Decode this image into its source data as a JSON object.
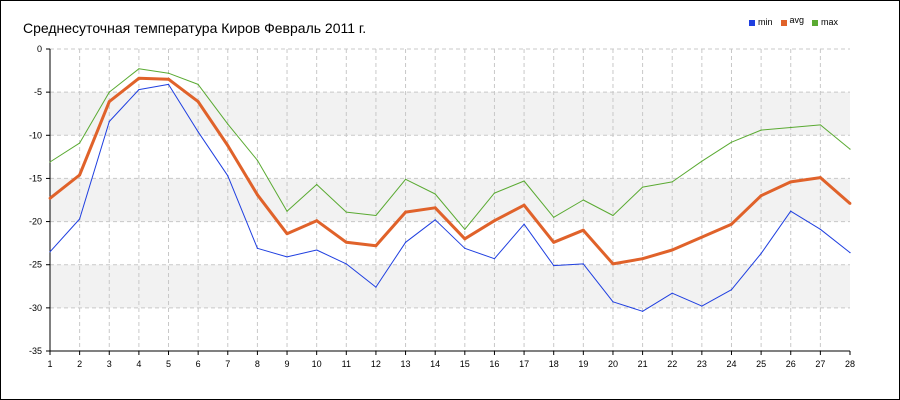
{
  "chart_data": {
    "type": "line",
    "title": "Среднесуточная температура Киров  Февраль 2011 г.",
    "xlabel": "",
    "ylabel": "",
    "x": [
      1,
      2,
      3,
      4,
      5,
      6,
      7,
      8,
      9,
      10,
      11,
      12,
      13,
      14,
      15,
      16,
      17,
      18,
      19,
      20,
      21,
      22,
      23,
      24,
      25,
      26,
      27,
      28
    ],
    "x_tick_labels": [
      "1",
      "2",
      "3",
      "4",
      "5",
      "6",
      "7",
      "8",
      "9",
      "10",
      "11",
      "12",
      "13",
      "14",
      "15",
      "16",
      "17",
      "18",
      "19",
      "20",
      "21",
      "22",
      "23",
      "24",
      "25",
      "26",
      "27",
      "28"
    ],
    "ylim": [
      -35,
      0
    ],
    "y_ticks": [
      0,
      -5,
      -10,
      -15,
      -20,
      -25,
      -30,
      -35
    ],
    "y_tick_labels": [
      "0",
      "-5",
      "-10",
      "-15",
      "-20",
      "-25",
      "-30",
      "-35"
    ],
    "grid": true,
    "legend_position": "top-right",
    "series": [
      {
        "name": "min",
        "color": "#1f3fe0",
        "values": [
          -23.5,
          -19.7,
          -8.4,
          -4.7,
          -4.1,
          -9.6,
          -14.7,
          -23.1,
          -24.1,
          -23.3,
          -24.9,
          -27.6,
          -22.4,
          -19.8,
          -23.1,
          -24.3,
          -20.3,
          -25.1,
          -24.9,
          -29.3,
          -30.4,
          -28.3,
          -29.8,
          -27.9,
          -23.7,
          -18.8,
          -20.9,
          -23.6
        ]
      },
      {
        "name": "avg",
        "color": "#e0622a",
        "values": [
          -17.3,
          -14.6,
          -6.1,
          -3.4,
          -3.5,
          -6.1,
          -11.2,
          -16.9,
          -21.4,
          -19.9,
          -22.4,
          -22.8,
          -18.9,
          -18.4,
          -22.0,
          -19.9,
          -18.1,
          -22.4,
          -21.0,
          -24.9,
          -24.3,
          -23.3,
          -21.8,
          -20.3,
          -17.0,
          -15.4,
          -14.9,
          -17.9
        ]
      },
      {
        "name": "max",
        "color": "#5aaa32",
        "values": [
          -13.1,
          -10.9,
          -5.0,
          -2.3,
          -2.8,
          -4.1,
          -8.7,
          -12.9,
          -18.8,
          -15.7,
          -18.9,
          -19.3,
          -15.1,
          -16.8,
          -20.9,
          -16.7,
          -15.3,
          -19.5,
          -17.5,
          -19.3,
          -16.0,
          -15.4,
          -13.0,
          -10.8,
          -9.4,
          -9.1,
          -8.8,
          -11.6
        ]
      }
    ]
  }
}
